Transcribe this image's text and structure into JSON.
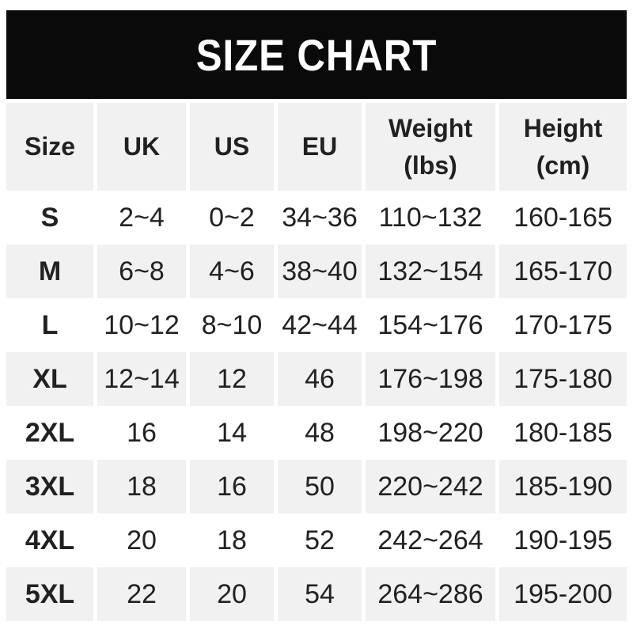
{
  "banner": {
    "title": "SIZE CHART"
  },
  "colors": {
    "page_bg": "#ffffff",
    "banner_bg": "#0a0a0a",
    "banner_text": "#ffffff",
    "row_shade": "#f1f1f2",
    "text": "#212121"
  },
  "table": {
    "columns": [
      {
        "label": "Size",
        "sub": ""
      },
      {
        "label": "UK",
        "sub": ""
      },
      {
        "label": "US",
        "sub": ""
      },
      {
        "label": "EU",
        "sub": ""
      },
      {
        "label": "Weight",
        "sub": "(lbs)"
      },
      {
        "label": "Height",
        "sub": "(cm)"
      }
    ]
  },
  "chart_data": {
    "type": "table",
    "title": "SIZE CHART",
    "columns": [
      "Size",
      "UK",
      "US",
      "EU",
      "Weight (lbs)",
      "Height (cm)"
    ],
    "rows": [
      [
        "S",
        "2~4",
        "0~2",
        "34~36",
        "110~132",
        "160-165"
      ],
      [
        "M",
        "6~8",
        "4~6",
        "38~40",
        "132~154",
        "165-170"
      ],
      [
        "L",
        "10~12",
        "8~10",
        "42~44",
        "154~176",
        "170-175"
      ],
      [
        "XL",
        "12~14",
        "12",
        "46",
        "176~198",
        "175-180"
      ],
      [
        "2XL",
        "16",
        "14",
        "48",
        "198~220",
        "180-185"
      ],
      [
        "3XL",
        "18",
        "16",
        "50",
        "220~242",
        "185-190"
      ],
      [
        "4XL",
        "20",
        "18",
        "52",
        "242~264",
        "190-195"
      ],
      [
        "5XL",
        "22",
        "20",
        "54",
        "264~286",
        "195-200"
      ]
    ],
    "layout": {
      "header_row_shaded": true,
      "zebra_striping": "data rows alternate white / light-gray starting white",
      "alignment": "all cells centered"
    }
  }
}
